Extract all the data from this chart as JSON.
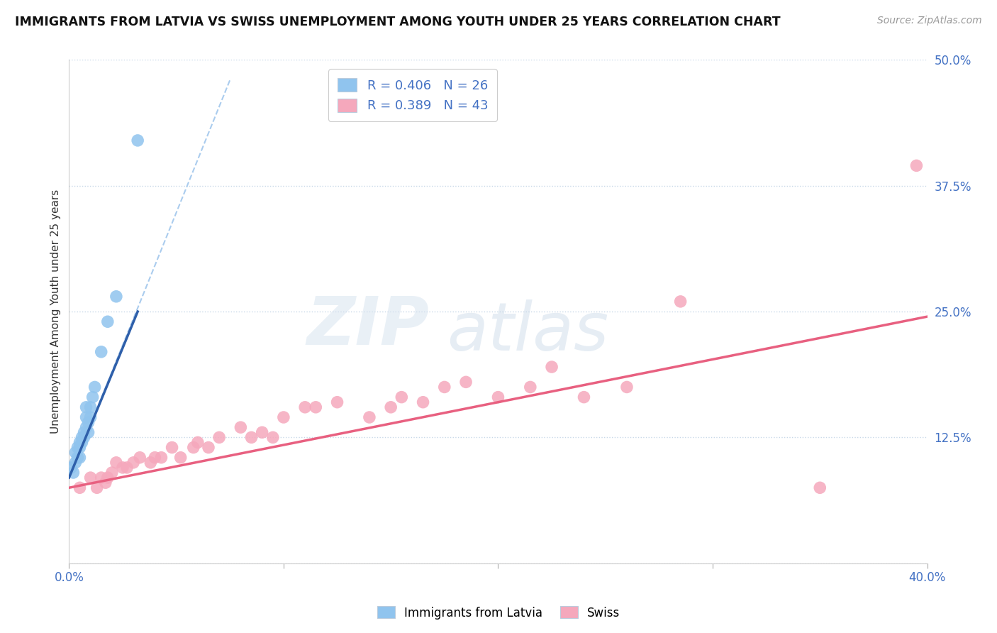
{
  "title": "IMMIGRANTS FROM LATVIA VS SWISS UNEMPLOYMENT AMONG YOUTH UNDER 25 YEARS CORRELATION CHART",
  "source": "Source: ZipAtlas.com",
  "ylabel": "Unemployment Among Youth under 25 years",
  "xlim": [
    0.0,
    0.4
  ],
  "ylim": [
    0.0,
    0.5
  ],
  "xticks": [
    0.0,
    0.1,
    0.2,
    0.3,
    0.4
  ],
  "xtick_labels": [
    "0.0%",
    "",
    "",
    "",
    "40.0%"
  ],
  "yticks": [
    0.0,
    0.125,
    0.25,
    0.375,
    0.5
  ],
  "ytick_labels": [
    "",
    "12.5%",
    "25.0%",
    "37.5%",
    "50.0%"
  ],
  "legend_r_latvia": "R = 0.406",
  "legend_n_latvia": "N = 26",
  "legend_r_swiss": "R = 0.389",
  "legend_n_swiss": "N = 43",
  "color_latvia": "#90C4EE",
  "color_swiss": "#F5A8BC",
  "color_latvia_line": "#2E5FAA",
  "color_swiss_line": "#E86080",
  "color_dashed": "#AACCEE",
  "watermark_zip": "ZIP",
  "watermark_atlas": "atlas",
  "latvia_x": [
    0.001,
    0.002,
    0.003,
    0.003,
    0.004,
    0.004,
    0.005,
    0.005,
    0.005,
    0.006,
    0.006,
    0.007,
    0.007,
    0.008,
    0.008,
    0.008,
    0.009,
    0.009,
    0.01,
    0.01,
    0.011,
    0.012,
    0.015,
    0.018,
    0.022,
    0.032
  ],
  "latvia_y": [
    0.095,
    0.09,
    0.11,
    0.1,
    0.115,
    0.105,
    0.12,
    0.115,
    0.105,
    0.125,
    0.12,
    0.13,
    0.125,
    0.135,
    0.145,
    0.155,
    0.13,
    0.14,
    0.145,
    0.155,
    0.165,
    0.175,
    0.21,
    0.24,
    0.265,
    0.42
  ],
  "swiss_x": [
    0.005,
    0.01,
    0.013,
    0.015,
    0.017,
    0.018,
    0.02,
    0.022,
    0.025,
    0.027,
    0.03,
    0.033,
    0.038,
    0.04,
    0.043,
    0.048,
    0.052,
    0.058,
    0.06,
    0.065,
    0.07,
    0.08,
    0.085,
    0.09,
    0.095,
    0.1,
    0.11,
    0.115,
    0.125,
    0.14,
    0.15,
    0.155,
    0.165,
    0.175,
    0.185,
    0.2,
    0.215,
    0.225,
    0.24,
    0.26,
    0.285,
    0.35,
    0.395
  ],
  "swiss_y": [
    0.075,
    0.085,
    0.075,
    0.085,
    0.08,
    0.085,
    0.09,
    0.1,
    0.095,
    0.095,
    0.1,
    0.105,
    0.1,
    0.105,
    0.105,
    0.115,
    0.105,
    0.115,
    0.12,
    0.115,
    0.125,
    0.135,
    0.125,
    0.13,
    0.125,
    0.145,
    0.155,
    0.155,
    0.16,
    0.145,
    0.155,
    0.165,
    0.16,
    0.175,
    0.18,
    0.165,
    0.175,
    0.195,
    0.165,
    0.175,
    0.26,
    0.075,
    0.395
  ],
  "latvia_trendline_x": [
    0.0,
    0.032
  ],
  "latvia_trendline_y": [
    0.085,
    0.25
  ],
  "swiss_trendline_x": [
    0.0,
    0.4
  ],
  "swiss_trendline_y": [
    0.075,
    0.245
  ],
  "dashed_line_x": [
    0.0,
    0.075
  ],
  "dashed_line_y": [
    0.085,
    0.48
  ]
}
